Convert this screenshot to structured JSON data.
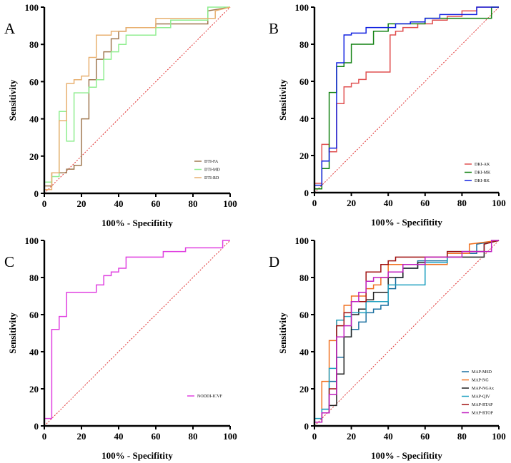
{
  "chart_data": [
    {
      "panel": "A",
      "type": "line",
      "xlabel": "100% - Specifitity",
      "ylabel": "Sensitivity",
      "xlim": [
        0,
        100
      ],
      "ylim": [
        0,
        100
      ],
      "xticks": [
        "0",
        "20",
        "40",
        "60",
        "80",
        "100"
      ],
      "yticks": [
        "0",
        "20",
        "40",
        "60",
        "80",
        "100"
      ],
      "grid": false,
      "legend": "bottom-right",
      "reference_line": "diagonal",
      "series": [
        {
          "name": "DTI-FA",
          "color": "#a07850",
          "x": [
            0,
            0,
            4,
            4,
            12,
            12,
            16,
            16,
            20,
            20,
            24,
            24,
            28,
            28,
            32,
            32,
            36,
            36,
            40,
            40,
            44,
            44,
            60,
            60,
            88,
            88,
            100
          ],
          "y": [
            0,
            4,
            4,
            11,
            11,
            13,
            13,
            15,
            15,
            40,
            40,
            61,
            61,
            72,
            72,
            76,
            76,
            83,
            83,
            87,
            87,
            89,
            89,
            91,
            91,
            98,
            100
          ]
        },
        {
          "name": "DTI-MD",
          "color": "#90ee90",
          "x": [
            0,
            0,
            4,
            4,
            8,
            8,
            12,
            12,
            16,
            16,
            24,
            24,
            28,
            28,
            32,
            32,
            36,
            36,
            40,
            40,
            44,
            44,
            60,
            60,
            68,
            68,
            88,
            88,
            100
          ],
          "y": [
            0,
            6,
            6,
            9,
            9,
            44,
            44,
            28,
            28,
            54,
            54,
            57,
            57,
            61,
            61,
            72,
            72,
            76,
            76,
            80,
            80,
            85,
            85,
            89,
            89,
            93,
            93,
            100,
            100
          ]
        },
        {
          "name": "DTI-RD",
          "color": "#e8b070",
          "x": [
            0,
            0,
            4,
            4,
            8,
            8,
            12,
            12,
            16,
            16,
            20,
            20,
            24,
            24,
            28,
            28,
            36,
            36,
            44,
            44,
            60,
            60,
            92,
            92,
            100
          ],
          "y": [
            0,
            2,
            2,
            11,
            11,
            39,
            39,
            59,
            59,
            61,
            61,
            63,
            63,
            73,
            73,
            85,
            85,
            87,
            87,
            89,
            89,
            94,
            94,
            98,
            100
          ]
        }
      ]
    },
    {
      "panel": "B",
      "type": "line",
      "xlabel": "100% - Specifitity",
      "ylabel": "Sensitivity",
      "xlim": [
        0,
        100
      ],
      "ylim": [
        0,
        100
      ],
      "xticks": [
        "0",
        "20",
        "40",
        "60",
        "80",
        "100"
      ],
      "yticks": [
        "0",
        "20",
        "40",
        "60",
        "80",
        "100"
      ],
      "grid": false,
      "legend": "bottom-right",
      "reference_line": "diagonal",
      "series": [
        {
          "name": "DKI-AK",
          "color": "#e05050",
          "x": [
            0,
            0,
            4,
            4,
            8,
            8,
            12,
            12,
            16,
            16,
            20,
            20,
            24,
            24,
            28,
            28,
            41,
            41,
            44,
            44,
            48,
            48,
            56,
            56,
            64,
            64,
            72,
            72,
            80,
            80,
            88,
            88,
            100
          ],
          "y": [
            0,
            5,
            5,
            26,
            26,
            22,
            22,
            48,
            48,
            57,
            57,
            59,
            59,
            61,
            61,
            65,
            65,
            85,
            85,
            87,
            87,
            89,
            89,
            91,
            91,
            93,
            93,
            95,
            95,
            98,
            98,
            100,
            100
          ]
        },
        {
          "name": "DKI-MK",
          "color": "#108010",
          "x": [
            0,
            0,
            4,
            4,
            8,
            8,
            12,
            12,
            16,
            16,
            20,
            20,
            32,
            32,
            40,
            40,
            60,
            60,
            96,
            96,
            100
          ],
          "y": [
            0,
            2,
            2,
            13,
            13,
            54,
            54,
            68,
            68,
            70,
            70,
            80,
            80,
            87,
            87,
            91,
            91,
            94,
            94,
            100,
            100
          ]
        },
        {
          "name": "DKI-RK",
          "color": "#1020e0",
          "x": [
            0,
            0,
            4,
            4,
            8,
            8,
            12,
            12,
            16,
            16,
            20,
            20,
            28,
            28,
            44,
            44,
            52,
            52,
            60,
            60,
            68,
            68,
            88,
            88,
            100
          ],
          "y": [
            0,
            4,
            4,
            17,
            17,
            24,
            24,
            70,
            70,
            85,
            85,
            86,
            86,
            89,
            89,
            91,
            91,
            92,
            92,
            94,
            94,
            96,
            96,
            100,
            100
          ]
        }
      ]
    },
    {
      "panel": "C",
      "type": "line",
      "xlabel": "100% - Specifitity",
      "ylabel": "Sensitivity",
      "xlim": [
        0,
        100
      ],
      "ylim": [
        0,
        100
      ],
      "xticks": [
        "0",
        "20",
        "40",
        "60",
        "80",
        "100"
      ],
      "yticks": [
        "0",
        "20",
        "40",
        "60",
        "80",
        "100"
      ],
      "grid": false,
      "legend": "bottom-right",
      "reference_line": "diagonal",
      "series": [
        {
          "name": "NODDI-ICVF",
          "color": "#e040e0",
          "x": [
            0,
            0,
            4,
            4,
            8,
            8,
            12,
            12,
            16,
            16,
            28,
            28,
            32,
            32,
            36,
            36,
            40,
            40,
            44,
            44,
            64,
            64,
            76,
            76,
            96,
            96,
            100
          ],
          "y": [
            0,
            4,
            4,
            52,
            52,
            59,
            59,
            72,
            72,
            72,
            72,
            76,
            76,
            81,
            81,
            83,
            83,
            85,
            85,
            91,
            91,
            94,
            94,
            96,
            96,
            100,
            100
          ]
        }
      ]
    },
    {
      "panel": "D",
      "type": "line",
      "xlabel": "100% - Specifitity",
      "ylabel": "Sensitivity",
      "xlim": [
        0,
        100
      ],
      "ylim": [
        0,
        100
      ],
      "xticks": [
        "0",
        "20",
        "40",
        "60",
        "80",
        "100"
      ],
      "yticks": [
        "0",
        "20",
        "40",
        "60",
        "80",
        "100"
      ],
      "grid": false,
      "legend": "bottom-right",
      "reference_line": "diagonal",
      "series": [
        {
          "name": "MAP-MSD",
          "color": "#1a6fa0",
          "x": [
            0,
            0,
            4,
            4,
            8,
            8,
            12,
            12,
            16,
            16,
            20,
            20,
            24,
            24,
            28,
            28,
            32,
            32,
            36,
            36,
            40,
            40,
            44,
            44,
            48,
            48,
            56,
            56,
            72,
            72,
            88,
            88,
            100
          ],
          "y": [
            0,
            2,
            2,
            9,
            9,
            24,
            24,
            37,
            37,
            48,
            48,
            52,
            52,
            56,
            56,
            61,
            61,
            63,
            63,
            65,
            65,
            74,
            74,
            80,
            80,
            85,
            85,
            89,
            89,
            93,
            93,
            98,
            100
          ]
        },
        {
          "name": "MAP-NG",
          "color": "#f07020",
          "x": [
            0,
            0,
            4,
            4,
            8,
            8,
            12,
            12,
            16,
            16,
            20,
            20,
            28,
            28,
            32,
            32,
            36,
            36,
            40,
            40,
            72,
            72,
            84,
            84,
            100
          ],
          "y": [
            0,
            2,
            2,
            24,
            24,
            46,
            46,
            57,
            57,
            65,
            65,
            70,
            70,
            74,
            74,
            76,
            76,
            80,
            80,
            87,
            87,
            93,
            93,
            98,
            100
          ]
        },
        {
          "name": "MAP-NGAx",
          "color": "#202020",
          "x": [
            0,
            0,
            4,
            4,
            8,
            8,
            12,
            12,
            16,
            16,
            20,
            20,
            24,
            24,
            28,
            28,
            32,
            32,
            40,
            40,
            48,
            48,
            56,
            56,
            72,
            72,
            92,
            92,
            100
          ],
          "y": [
            0,
            2,
            2,
            7,
            7,
            11,
            11,
            28,
            28,
            48,
            48,
            60,
            60,
            63,
            63,
            68,
            68,
            72,
            72,
            80,
            80,
            85,
            85,
            88,
            88,
            91,
            91,
            98,
            100
          ]
        },
        {
          "name": "MAP-QIV",
          "color": "#20a0c0",
          "x": [
            0,
            0,
            4,
            4,
            8,
            8,
            12,
            12,
            16,
            16,
            20,
            20,
            28,
            28,
            40,
            40,
            60,
            60,
            72,
            72,
            92,
            92,
            100
          ],
          "y": [
            0,
            4,
            4,
            9,
            9,
            31,
            31,
            57,
            57,
            59,
            59,
            61,
            61,
            67,
            67,
            76,
            76,
            88,
            88,
            94,
            94,
            98,
            100
          ]
        },
        {
          "name": "MAP-RTAP",
          "color": "#a01010",
          "x": [
            0,
            0,
            4,
            4,
            8,
            8,
            12,
            12,
            16,
            16,
            20,
            20,
            28,
            28,
            36,
            36,
            40,
            40,
            44,
            44,
            72,
            72,
            92,
            92,
            100
          ],
          "y": [
            0,
            2,
            2,
            7,
            7,
            20,
            20,
            54,
            54,
            61,
            61,
            67,
            67,
            83,
            83,
            87,
            87,
            89,
            89,
            91,
            91,
            94,
            94,
            98,
            100
          ]
        },
        {
          "name": "MAP-RTOP",
          "color": "#c020c0",
          "x": [
            0,
            0,
            4,
            4,
            8,
            8,
            12,
            12,
            16,
            16,
            20,
            20,
            24,
            24,
            28,
            28,
            32,
            32,
            40,
            40,
            48,
            48,
            60,
            60,
            80,
            80,
            96,
            96,
            100
          ],
          "y": [
            0,
            2,
            2,
            7,
            7,
            17,
            17,
            48,
            48,
            54,
            54,
            67,
            67,
            72,
            72,
            78,
            78,
            80,
            80,
            83,
            83,
            87,
            87,
            91,
            91,
            94,
            94,
            100,
            100
          ]
        }
      ]
    }
  ]
}
